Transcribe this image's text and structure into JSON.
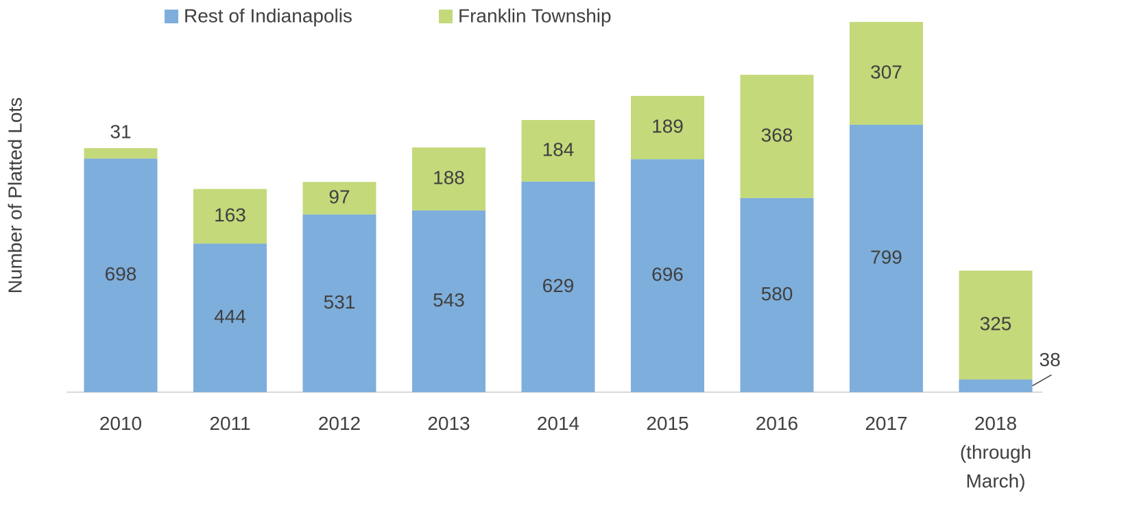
{
  "chart_data": {
    "type": "stacked_bar",
    "y_label": "Number of Platted Lots",
    "categories": [
      "2010",
      "2011",
      "2012",
      "2013",
      "2014",
      "2015",
      "2016",
      "2017",
      "2018 (through March)"
    ],
    "series": [
      {
        "name": "Rest of Indianapolis",
        "color": "#7eaedb",
        "values": [
          698,
          444,
          531,
          543,
          629,
          696,
          580,
          799,
          38
        ]
      },
      {
        "name": "Franklin Township",
        "color": "#c4d97a",
        "values": [
          31,
          163,
          97,
          188,
          184,
          189,
          368,
          307,
          325
        ]
      }
    ]
  }
}
